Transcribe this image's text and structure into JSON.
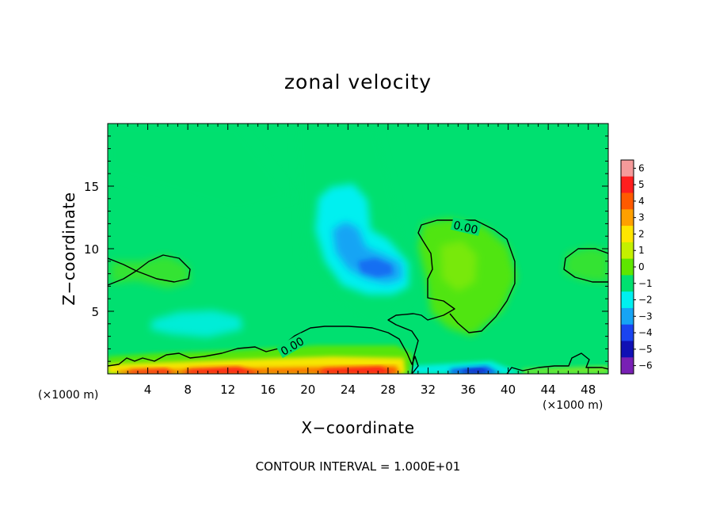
{
  "chart_data": {
    "type": "heatmap",
    "title": "zonal velocity",
    "xlabel": "X−coordinate",
    "ylabel": "Z−coordinate",
    "x_unit": "(×1000 m)",
    "y_unit": "(×1000 m)",
    "xlim": [
      0,
      50
    ],
    "ylim": [
      0,
      20
    ],
    "x_ticks": [
      4,
      8,
      12,
      16,
      20,
      24,
      28,
      32,
      36,
      40,
      44,
      48
    ],
    "x_tick_labels": [
      "4",
      "8",
      "12",
      "16",
      "20",
      "24",
      "28",
      "32",
      "36",
      "40",
      "44",
      "48"
    ],
    "y_ticks": [
      5,
      10,
      15
    ],
    "y_tick_labels": [
      "5",
      "10",
      "15"
    ],
    "colorbar": {
      "levels": [
        6,
        5,
        4,
        3,
        2,
        1,
        0,
        -1,
        -2,
        -3,
        -4,
        -5,
        -6
      ],
      "labels": [
        "6",
        "5",
        "4",
        "3",
        "2",
        "1",
        "0",
        "−1",
        "−2",
        "−3",
        "−4",
        "−5",
        "−6"
      ],
      "colors": [
        "#f59a9a",
        "#ff1e1e",
        "#ff5a00",
        "#ffa000",
        "#ffe600",
        "#c4f000",
        "#5ee600",
        "#00e070",
        "#00f0f0",
        "#16a4f4",
        "#1a44f0",
        "#1010b4",
        "#7820b4"
      ]
    },
    "contour_label": "0.00",
    "features": [
      {
        "kind": "min",
        "x": 26,
        "z": 8.5,
        "value": -3.2
      },
      {
        "kind": "min",
        "x": 23,
        "z": 11,
        "value": -2.4
      },
      {
        "kind": "min",
        "x": 10.5,
        "z": 4,
        "value": -1.8
      },
      {
        "kind": "max",
        "x": 35,
        "z": 8,
        "value": 0.7
      },
      {
        "kind": "max",
        "x": 5.5,
        "z": 8,
        "value": 0.4
      },
      {
        "kind": "max",
        "x": 12,
        "z": 0.3,
        "value": 6
      },
      {
        "kind": "max",
        "x": 27,
        "z": 0.3,
        "value": 5.5
      },
      {
        "kind": "min",
        "x": 36.5,
        "z": 0.2,
        "value": -4
      }
    ],
    "footnote": "CONTOUR INTERVAL = 1.000E+01"
  }
}
